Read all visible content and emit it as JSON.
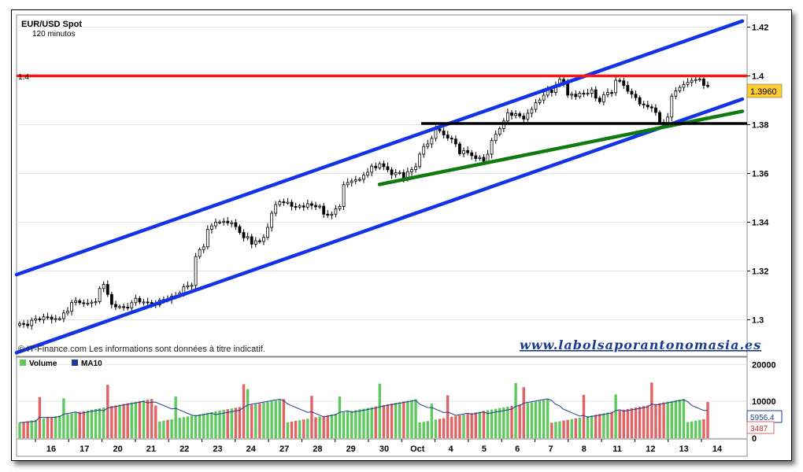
{
  "chart_data": [
    {
      "type": "candlestick",
      "title": "EUR/USD Spot",
      "subtitle": "120 minutos",
      "ylim": [
        1.285,
        1.425
      ],
      "yticks": [
        1.3,
        1.32,
        1.34,
        1.36,
        1.38,
        1.4,
        1.42
      ],
      "ytick_labels": [
        "1.3",
        "1.32",
        "1.34",
        "1.36",
        "1.38",
        "1.4",
        "1.42"
      ],
      "last_price": "1.3960",
      "resistance_level": 1.4,
      "resistance_label": "1.4",
      "support_level": 1.3805,
      "close_series": [
        1.2985,
        1.2982,
        1.2976,
        1.2998,
        1.3004,
        1.3,
        1.3012,
        1.3011,
        1.3002,
        1.3005,
        1.3005,
        1.3028,
        1.3035,
        1.3071,
        1.3078,
        1.307,
        1.3068,
        1.3068,
        1.3072,
        1.3074,
        1.3128,
        1.3145,
        1.3104,
        1.3063,
        1.3053,
        1.3054,
        1.3052,
        1.3049,
        1.307,
        1.3088,
        1.3073,
        1.3073,
        1.3071,
        1.3066,
        1.3061,
        1.3081,
        1.3083,
        1.3082,
        1.3097,
        1.3099,
        1.311,
        1.3135,
        1.314,
        1.3141,
        1.3259,
        1.3288,
        1.3299,
        1.3371,
        1.3385,
        1.34,
        1.3401,
        1.3404,
        1.3397,
        1.3398,
        1.3382,
        1.3358,
        1.3336,
        1.3341,
        1.331,
        1.3324,
        1.3321,
        1.3338,
        1.3379,
        1.3437,
        1.3472,
        1.3484,
        1.3482,
        1.3482,
        1.3465,
        1.3462,
        1.3467,
        1.3462,
        1.3476,
        1.3469,
        1.3463,
        1.3466,
        1.3433,
        1.3429,
        1.3433,
        1.3455,
        1.3465,
        1.3554,
        1.3563,
        1.3569,
        1.3575,
        1.3576,
        1.3593,
        1.3605,
        1.363,
        1.3623,
        1.364,
        1.3628,
        1.3615,
        1.3595,
        1.3603,
        1.3604,
        1.3578,
        1.3607,
        1.3616,
        1.3628,
        1.3679,
        1.3711,
        1.3721,
        1.3744,
        1.3782,
        1.3775,
        1.3758,
        1.3745,
        1.3741,
        1.3721,
        1.3681,
        1.3694,
        1.3685,
        1.3673,
        1.3661,
        1.3666,
        1.3649,
        1.3679,
        1.3735,
        1.3761,
        1.3784,
        1.3815,
        1.3849,
        1.3838,
        1.3845,
        1.3835,
        1.3823,
        1.3847,
        1.3863,
        1.389,
        1.3901,
        1.3921,
        1.3942,
        1.3932,
        1.3962,
        1.3986,
        1.397,
        1.3921,
        1.3925,
        1.3915,
        1.3929,
        1.3928,
        1.3929,
        1.3943,
        1.3909,
        1.3894,
        1.3923,
        1.3932,
        1.3931,
        1.3982,
        1.398,
        1.3961,
        1.3937,
        1.3925,
        1.3911,
        1.3885,
        1.3881,
        1.3873,
        1.3869,
        1.385,
        1.381,
        1.3808,
        1.3831,
        1.3917,
        1.3939,
        1.3953,
        1.3965,
        1.3974,
        1.3982,
        1.3985,
        1.3987,
        1.3961,
        1.396
      ],
      "trend_lines": [
        {
          "name": "upper-channel",
          "color": "#1432e6",
          "from": [
            "Sep 15",
            1.3185
          ],
          "to": [
            "Oct 14",
            1.4225
          ]
        },
        {
          "name": "lower-channel",
          "color": "#1432e6",
          "from": [
            "Sep 15",
            1.2865
          ],
          "to": [
            "Oct 14",
            1.3905
          ]
        },
        {
          "name": "green-support",
          "color": "#0f7a0f",
          "from": [
            "Sep 30",
            1.3555
          ],
          "to": [
            "Oct 14",
            1.3855
          ]
        }
      ],
      "x_tick_labels": [
        "16",
        "17",
        "20",
        "21",
        "22",
        "23",
        "24",
        "27",
        "28",
        "29",
        "30",
        "Oct",
        "4",
        "5",
        "6",
        "7",
        "8",
        "11",
        "12",
        "13",
        "14"
      ]
    },
    {
      "type": "bar",
      "legend": [
        "Volume",
        "MA10"
      ],
      "ylim": [
        0,
        22000
      ],
      "yticks": [
        0,
        10000,
        20000
      ],
      "ytick_labels": [
        "0",
        "10000",
        "20000"
      ],
      "last_ma": "5956.4",
      "last_volume": "3487"
    }
  ],
  "copyright_text": "© IT-Finance.com Les informations sont données à titre indicatif.",
  "watermark_text": "www.labolsaporantonomasia.es",
  "colors": {
    "up_bar": "#5fc95f",
    "down_bar": "#e06464",
    "ma_line": "#1e3c96",
    "resistance": "#ff1414",
    "price_tag": "#ffcc33"
  }
}
